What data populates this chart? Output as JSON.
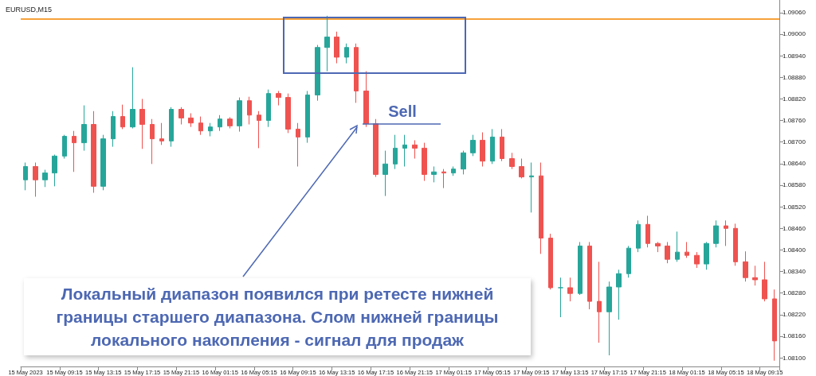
{
  "chart_data": {
    "type": "candlestick",
    "title": "EURUSD,M15",
    "categories": [
      "15 May 2023",
      null,
      null,
      null,
      "15 May 09:15",
      null,
      null,
      null,
      "15 May 13:15",
      null,
      null,
      null,
      "15 May 17:15",
      null,
      null,
      null,
      "15 May 21:15",
      null,
      null,
      null,
      "16 May 01:15",
      null,
      null,
      null,
      "16 May 05:15",
      null,
      null,
      null,
      "16 May 09:15",
      null,
      null,
      null,
      "16 May 13:15",
      null,
      null,
      null,
      "16 May 17:15",
      null,
      null,
      null,
      "16 May 21:15",
      null,
      null,
      null,
      "17 May 01:15",
      null,
      null,
      null,
      "17 May 05:15",
      null,
      null,
      null,
      "17 May 09:15",
      null,
      null,
      null,
      "17 May 13:15",
      null,
      null,
      null,
      "17 May 17:15",
      null,
      null,
      null,
      "17 May 21:15",
      null,
      null,
      null,
      "18 May 01:15",
      null,
      null,
      null,
      "18 May 05:15",
      null,
      null,
      null,
      "18 May 09:15",
      null
    ],
    "ohlc": [
      [
        1.08595,
        1.08643,
        1.08566,
        1.08632
      ],
      [
        1.08632,
        1.08643,
        1.08548,
        1.08595
      ],
      [
        1.08595,
        1.08623,
        1.08575,
        1.08614
      ],
      [
        1.08614,
        1.08665,
        1.08577,
        1.08661
      ],
      [
        1.08661,
        1.0872,
        1.08654,
        1.08716
      ],
      [
        1.08716,
        1.08731,
        1.08617,
        1.08698
      ],
      [
        1.08698,
        1.08802,
        1.08676,
        1.08749
      ],
      [
        1.08749,
        1.08786,
        1.08559,
        1.08577
      ],
      [
        1.08577,
        1.0872,
        1.08566,
        1.08709
      ],
      [
        1.08709,
        1.08786,
        1.08687,
        1.08771
      ],
      [
        1.08771,
        1.08804,
        1.08736,
        1.08742
      ],
      [
        1.08742,
        1.08908,
        1.08738,
        1.08791
      ],
      [
        1.08791,
        1.0882,
        1.08681,
        1.08749
      ],
      [
        1.08749,
        1.08764,
        1.08639,
        1.08709
      ],
      [
        1.08709,
        1.08753,
        1.08692,
        1.08703
      ],
      [
        1.08703,
        1.08797,
        1.08687,
        1.08791
      ],
      [
        1.08791,
        1.08797,
        1.08749,
        1.08767
      ],
      [
        1.08767,
        1.0878,
        1.08742,
        1.08753
      ],
      [
        1.08753,
        1.08771,
        1.0872,
        1.08731
      ],
      [
        1.08731,
        1.08753,
        1.08716,
        1.08742
      ],
      [
        1.08742,
        1.08775,
        1.08731,
        1.08764
      ],
      [
        1.08764,
        1.08769,
        1.08738,
        1.08745
      ],
      [
        1.08745,
        1.08824,
        1.08729,
        1.08815
      ],
      [
        1.08815,
        1.08826,
        1.08749,
        1.08775
      ],
      [
        1.08775,
        1.08786,
        1.08683,
        1.0876
      ],
      [
        1.0876,
        1.08846,
        1.08742,
        1.08835
      ],
      [
        1.08835,
        1.08842,
        1.08802,
        1.08824
      ],
      [
        1.08824,
        1.08835,
        1.08725,
        1.08736
      ],
      [
        1.08736,
        1.08753,
        1.08632,
        1.08714
      ],
      [
        1.08714,
        1.08842,
        1.08698,
        1.08831
      ],
      [
        1.08831,
        1.0897,
        1.08815,
        1.08963
      ],
      [
        1.08963,
        1.09051,
        1.08897,
        1.08992
      ],
      [
        1.08992,
        1.09007,
        1.08919,
        1.08936
      ],
      [
        1.08936,
        1.08974,
        1.08919,
        1.08963
      ],
      [
        1.08963,
        1.08974,
        1.08809,
        1.08842
      ],
      [
        1.08842,
        1.08897,
        1.08742,
        1.08751
      ],
      [
        1.08751,
        1.08764,
        1.08603,
        1.0861
      ],
      [
        1.0861,
        1.08676,
        1.0855,
        1.08639
      ],
      [
        1.08639,
        1.0872,
        1.08625,
        1.08683
      ],
      [
        1.08683,
        1.0872,
        1.08632,
        1.08692
      ],
      [
        1.08692,
        1.08705,
        1.08654,
        1.08683
      ],
      [
        1.08683,
        1.08698,
        1.08592,
        1.0861
      ],
      [
        1.0861,
        1.08632,
        1.08588,
        1.08617
      ],
      [
        1.08617,
        1.08625,
        1.08572,
        1.08614
      ],
      [
        1.08614,
        1.08632,
        1.08606,
        1.08625
      ],
      [
        1.08625,
        1.08676,
        1.0861,
        1.0867
      ],
      [
        1.0867,
        1.0872,
        1.08661,
        1.08705
      ],
      [
        1.08705,
        1.08727,
        1.08632,
        1.08647
      ],
      [
        1.08647,
        1.08736,
        1.08639,
        1.08714
      ],
      [
        1.08714,
        1.08736,
        1.08647,
        1.08654
      ],
      [
        1.08654,
        1.0867,
        1.08625,
        1.08632
      ],
      [
        1.08632,
        1.08654,
        1.08599,
        1.08603
      ],
      [
        1.08603,
        1.08643,
        1.08504,
        1.08606
      ],
      [
        1.08606,
        1.08643,
        1.08389,
        1.08433
      ],
      [
        1.08433,
        1.08445,
        1.0829,
        1.08295
      ],
      [
        1.08295,
        1.08323,
        1.08213,
        1.08295
      ],
      [
        1.08295,
        1.08323,
        1.08257,
        1.08279
      ],
      [
        1.08279,
        1.08422,
        1.08275,
        1.08411
      ],
      [
        1.08411,
        1.08422,
        1.08235,
        1.08257
      ],
      [
        1.08257,
        1.08367,
        1.08142,
        1.08228
      ],
      [
        1.08228,
        1.08312,
        1.08107,
        1.08297
      ],
      [
        1.08297,
        1.08345,
        1.08206,
        1.08334
      ],
      [
        1.08334,
        1.08411,
        1.08323,
        1.08405
      ],
      [
        1.08405,
        1.08482,
        1.08394,
        1.08471
      ],
      [
        1.08471,
        1.08495,
        1.08407,
        1.08418
      ],
      [
        1.08418,
        1.08422,
        1.08394,
        1.08411
      ],
      [
        1.08411,
        1.08422,
        1.08363,
        1.08374
      ],
      [
        1.08374,
        1.08451,
        1.08367,
        1.08394
      ],
      [
        1.08394,
        1.08422,
        1.08378,
        1.08385
      ],
      [
        1.08385,
        1.08394,
        1.0835,
        1.08361
      ],
      [
        1.08361,
        1.08422,
        1.08345,
        1.08418
      ],
      [
        1.08418,
        1.08482,
        1.08407,
        1.08467
      ],
      [
        1.08467,
        1.08482,
        1.08411,
        1.0846
      ],
      [
        1.0846,
        1.08473,
        1.08356,
        1.08367
      ],
      [
        1.08367,
        1.08396,
        1.08312,
        1.08323
      ],
      [
        1.08323,
        1.08356,
        1.08301,
        1.08317
      ],
      [
        1.08317,
        1.08367,
        1.08257,
        1.08264
      ],
      [
        1.08264,
        1.0829,
        1.08092,
        1.08147
      ]
    ],
    "colors": [
      "#26a69a",
      "#ef5350",
      "#26a69a",
      "#26a69a",
      "#26a69a",
      "#ef5350",
      "#26a69a",
      "#ef5350",
      "#26a69a",
      "#26a69a",
      "#ef5350",
      "#26a69a",
      "#ef5350",
      "#ef5350",
      "#ef5350",
      "#26a69a",
      "#ef5350",
      "#ef5350",
      "#ef5350",
      "#26a69a",
      "#26a69a",
      "#ef5350",
      "#26a69a",
      "#ef5350",
      "#ef5350",
      "#26a69a",
      "#ef5350",
      "#ef5350",
      "#ef5350",
      "#26a69a",
      "#26a69a",
      "#26a69a",
      "#ef5350",
      "#26a69a",
      "#ef5350",
      "#ef5350",
      "#ef5350",
      "#26a69a",
      "#26a69a",
      "#26a69a",
      "#ef5350",
      "#ef5350",
      "#26a69a",
      "#ef5350",
      "#26a69a",
      "#26a69a",
      "#26a69a",
      "#ef5350",
      "#26a69a",
      "#ef5350",
      "#ef5350",
      "#ef5350",
      "#26a69a",
      "#ef5350",
      "#ef5350",
      "#26a69a",
      "#ef5350",
      "#26a69a",
      "#ef5350",
      "#ef5350",
      "#26a69a",
      "#26a69a",
      "#26a69a",
      "#26a69a",
      "#ef5350",
      "#ef5350",
      "#ef5350",
      "#26a69a",
      "#ef5350",
      "#ef5350",
      "#26a69a",
      "#26a69a",
      "#ef5350",
      "#ef5350",
      "#ef5350",
      "#ef5350",
      "#ef5350",
      "#ef5350"
    ],
    "ylim": [
      1.08076,
      1.09095
    ],
    "yticks": [
      {
        "value": 1.081,
        "label": "1.08100"
      },
      {
        "value": 1.0816,
        "label": "1.08160"
      },
      {
        "value": 1.0822,
        "label": "1.08220"
      },
      {
        "value": 1.0828,
        "label": "1.08280"
      },
      {
        "value": 1.0834,
        "label": "1.08340"
      },
      {
        "value": 1.084,
        "label": "1.08400"
      },
      {
        "value": 1.0846,
        "label": "1.08460"
      },
      {
        "value": 1.0852,
        "label": "1.08520"
      },
      {
        "value": 1.0858,
        "label": "1.08580"
      },
      {
        "value": 1.0864,
        "label": "1.08640"
      },
      {
        "value": 1.087,
        "label": "1.08700"
      },
      {
        "value": 1.0876,
        "label": "1.08760"
      },
      {
        "value": 1.0882,
        "label": "1.08820"
      },
      {
        "value": 1.0888,
        "label": "1.08880"
      },
      {
        "value": 1.0894,
        "label": "1.08940"
      },
      {
        "value": 1.09,
        "label": "1.09000"
      },
      {
        "value": 1.0906,
        "label": "1.09060"
      }
    ],
    "ref_lines": [
      {
        "axis": "y",
        "value": 1.09042,
        "color": "#f7a23b"
      }
    ],
    "annotations": [
      "Локальный диапазон появился при ретесте нижней границы старшего диапазона. Слом нижней границы локального накопления - сигнал для продаж",
      "Sell"
    ]
  }
}
